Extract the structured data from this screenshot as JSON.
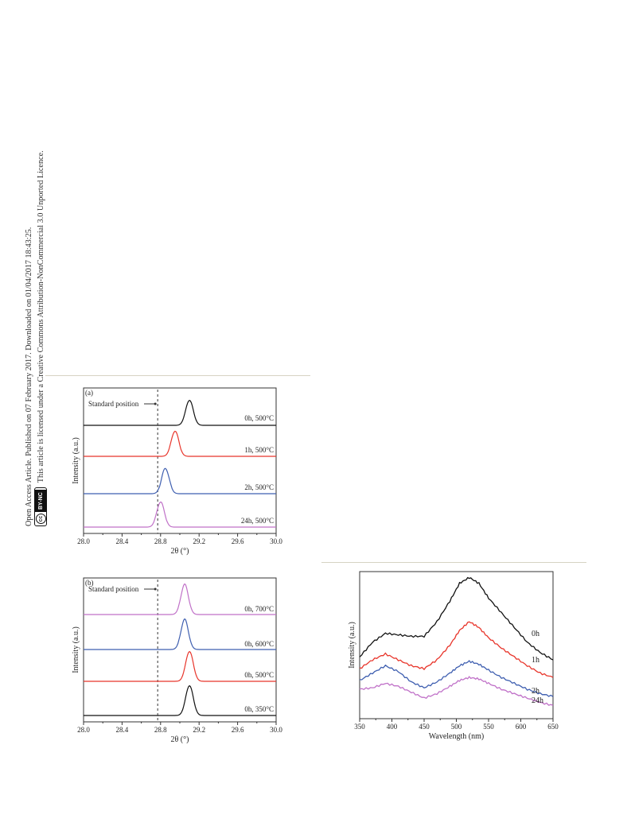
{
  "sidebar": {
    "line1": "Open Access Article. Published on 07 February 2017. Downloaded on 01/04/2017 18:43:25.",
    "line2": "This article is licensed under a Creative Commons Attribution-NonCommercial 3.0 Unported Licence.",
    "cc_symbol": "cc",
    "cc_label": "BY-NC"
  },
  "chart_data": [
    {
      "type": "line",
      "panel_label": "(a)",
      "xlabel": "2θ (°)",
      "ylabel": "Intensity (a.u.)",
      "xlim": [
        28.0,
        30.0
      ],
      "xticks": [
        "28.0",
        "28.4",
        "28.8",
        "29.2",
        "29.6",
        "30.0"
      ],
      "standard_position": {
        "x": 28.77,
        "label": "Standard position"
      },
      "series": [
        {
          "name": "0h, 500°C",
          "peak": 29.1,
          "color": "#111111"
        },
        {
          "name": "1h, 500°C",
          "peak": 28.95,
          "color": "#e8352b"
        },
        {
          "name": "2h, 500°C",
          "peak": 28.85,
          "color": "#3f5fb0"
        },
        {
          "name": "24h, 500°C",
          "peak": 28.8,
          "color": "#c071c8"
        }
      ]
    },
    {
      "type": "line",
      "panel_label": "(b)",
      "xlabel": "2θ (°)",
      "ylabel": "Intensity (a.u.)",
      "xlim": [
        28.0,
        30.0
      ],
      "xticks": [
        "28.0",
        "28.4",
        "28.8",
        "29.2",
        "29.6",
        "30.0"
      ],
      "standard_position": {
        "x": 28.77,
        "label": "Standard position"
      },
      "series": [
        {
          "name": "0h, 700°C",
          "peak": 29.05,
          "color": "#c071c8"
        },
        {
          "name": "0h, 600°C",
          "peak": 29.05,
          "color": "#3f5fb0"
        },
        {
          "name": "0h, 500°C",
          "peak": 29.1,
          "color": "#e8352b"
        },
        {
          "name": "0h, 350°C",
          "peak": 29.1,
          "color": "#111111"
        }
      ]
    },
    {
      "type": "line",
      "xlabel": "Wavelength (nm)",
      "ylabel": "Intensity (a.u.)",
      "xlim": [
        350,
        650
      ],
      "xticks": [
        "350",
        "400",
        "450",
        "500",
        "550",
        "600",
        "650"
      ],
      "series": [
        {
          "name": "0h",
          "color": "#111111",
          "points": [
            [
              350,
              0.42
            ],
            [
              370,
              0.52
            ],
            [
              390,
              0.58
            ],
            [
              410,
              0.57
            ],
            [
              430,
              0.56
            ],
            [
              450,
              0.56
            ],
            [
              470,
              0.66
            ],
            [
              490,
              0.8
            ],
            [
              505,
              0.92
            ],
            [
              520,
              0.96
            ],
            [
              535,
              0.92
            ],
            [
              550,
              0.82
            ],
            [
              570,
              0.72
            ],
            [
              590,
              0.62
            ],
            [
              610,
              0.52
            ],
            [
              630,
              0.45
            ],
            [
              650,
              0.4
            ]
          ]
        },
        {
          "name": "1h",
          "color": "#e8352b",
          "points": [
            [
              350,
              0.34
            ],
            [
              370,
              0.4
            ],
            [
              390,
              0.44
            ],
            [
              410,
              0.4
            ],
            [
              430,
              0.36
            ],
            [
              450,
              0.34
            ],
            [
              470,
              0.4
            ],
            [
              490,
              0.5
            ],
            [
              505,
              0.6
            ],
            [
              520,
              0.66
            ],
            [
              535,
              0.62
            ],
            [
              550,
              0.55
            ],
            [
              570,
              0.48
            ],
            [
              590,
              0.42
            ],
            [
              610,
              0.36
            ],
            [
              630,
              0.31
            ],
            [
              650,
              0.28
            ]
          ]
        },
        {
          "name": "2h",
          "color": "#3f5fb0",
          "points": [
            [
              350,
              0.26
            ],
            [
              370,
              0.31
            ],
            [
              390,
              0.36
            ],
            [
              410,
              0.32
            ],
            [
              430,
              0.25
            ],
            [
              450,
              0.21
            ],
            [
              470,
              0.25
            ],
            [
              490,
              0.31
            ],
            [
              505,
              0.36
            ],
            [
              520,
              0.39
            ],
            [
              535,
              0.37
            ],
            [
              550,
              0.33
            ],
            [
              570,
              0.28
            ],
            [
              590,
              0.24
            ],
            [
              610,
              0.2
            ],
            [
              630,
              0.17
            ],
            [
              650,
              0.15
            ]
          ]
        },
        {
          "name": "24h",
          "color": "#c071c8",
          "points": [
            [
              350,
              0.2
            ],
            [
              370,
              0.21
            ],
            [
              390,
              0.24
            ],
            [
              410,
              0.22
            ],
            [
              430,
              0.18
            ],
            [
              450,
              0.14
            ],
            [
              470,
              0.17
            ],
            [
              490,
              0.22
            ],
            [
              505,
              0.26
            ],
            [
              520,
              0.28
            ],
            [
              535,
              0.27
            ],
            [
              550,
              0.24
            ],
            [
              570,
              0.2
            ],
            [
              590,
              0.17
            ],
            [
              610,
              0.14
            ],
            [
              630,
              0.11
            ],
            [
              650,
              0.09
            ]
          ]
        }
      ]
    }
  ]
}
